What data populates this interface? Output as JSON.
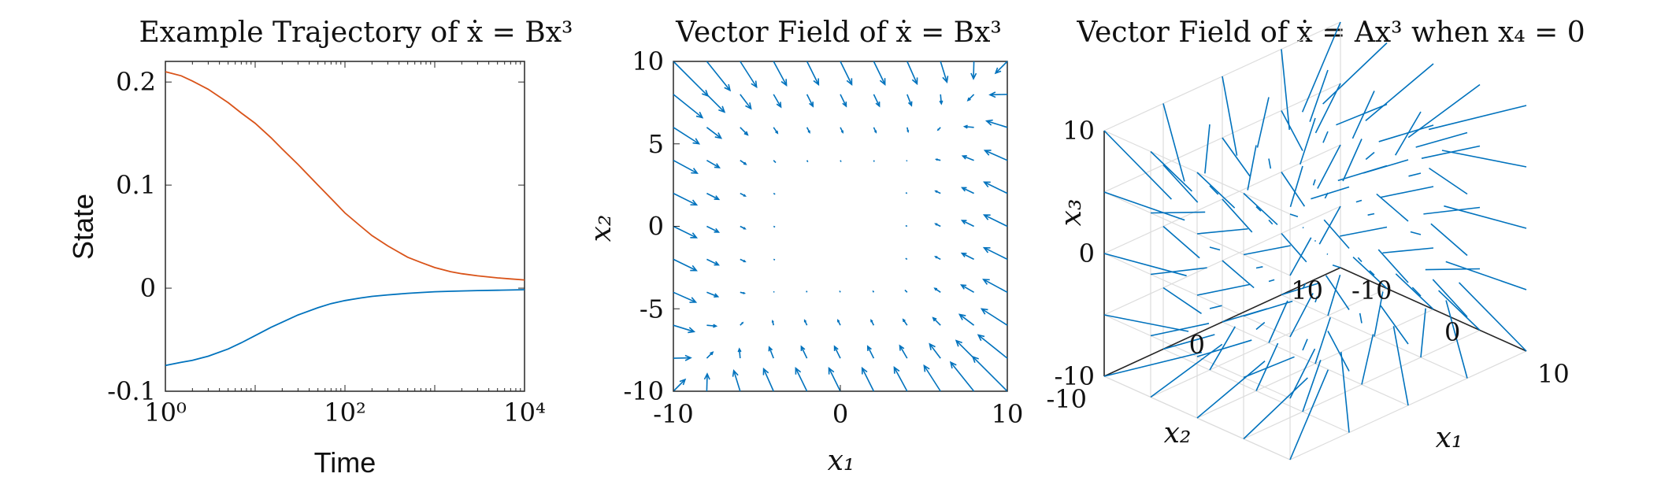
{
  "chart_data": [
    {
      "type": "line",
      "title": "Example Trajectory of ẋ = Bx³",
      "xlabel": "Time",
      "ylabel": "State",
      "x_scale": "log",
      "xlim": [
        1,
        10000
      ],
      "ylim": [
        -0.1,
        0.22
      ],
      "x_ticks": [
        1,
        100,
        10000
      ],
      "x_tick_labels": [
        "10⁰",
        "10²",
        "10⁴"
      ],
      "y_ticks": [
        -0.1,
        0,
        0.1,
        0.2
      ],
      "y_tick_labels": [
        "-0.1",
        "0",
        "0.1",
        "0.2"
      ],
      "series": [
        {
          "color": "#d95319",
          "x": [
            1,
            1.5,
            2,
            3,
            5,
            7,
            10,
            15,
            20,
            30,
            50,
            70,
            100,
            150,
            200,
            300,
            500,
            700,
            1000,
            1500,
            2000,
            3000,
            5000,
            7000,
            10000
          ],
          "values": [
            0.21,
            0.206,
            0.201,
            0.193,
            0.18,
            0.17,
            0.16,
            0.146,
            0.135,
            0.12,
            0.1,
            0.087,
            0.073,
            0.06,
            0.051,
            0.041,
            0.03,
            0.025,
            0.02,
            0.016,
            0.014,
            0.012,
            0.01,
            0.009,
            0.008
          ]
        },
        {
          "color": "#0072bd",
          "x": [
            1,
            1.5,
            2,
            3,
            5,
            7,
            10,
            15,
            20,
            30,
            50,
            70,
            100,
            150,
            200,
            300,
            500,
            700,
            1000,
            1500,
            2000,
            3000,
            5000,
            7000,
            10000
          ],
          "values": [
            -0.075,
            -0.072,
            -0.07,
            -0.066,
            -0.059,
            -0.053,
            -0.046,
            -0.038,
            -0.033,
            -0.026,
            -0.019,
            -0.015,
            -0.012,
            -0.0095,
            -0.008,
            -0.0065,
            -0.005,
            -0.0042,
            -0.0035,
            -0.003,
            -0.0027,
            -0.0023,
            -0.002,
            -0.0018,
            -0.0015
          ]
        }
      ]
    },
    {
      "type": "quiver",
      "title": "Vector Field of ẋ = Bx³",
      "xlabel": "x₁",
      "ylabel": "x₂",
      "xlim": [
        -10,
        10
      ],
      "ylim": [
        -10,
        10
      ],
      "x_ticks": [
        -10,
        0,
        10
      ],
      "x_tick_labels": [
        "-10",
        "0",
        "10"
      ],
      "y_ticks": [
        -10,
        -5,
        0,
        5,
        10
      ],
      "y_tick_labels": [
        "-10",
        "-5",
        "0",
        "5",
        "10"
      ],
      "grid_step": 2,
      "field": {
        "a": 0.67,
        "b": 0.33,
        "c": 0.67,
        "d": 0.33
      },
      "color": "#0072bd"
    },
    {
      "type": "quiver3d",
      "title": "Vector Field of ẋ = Ax³ when x₄ = 0",
      "xlabel": "x₁",
      "ylabel": "x₂",
      "zlabel": "x₃",
      "xlim": [
        -10,
        10
      ],
      "ylim": [
        -10,
        10
      ],
      "zlim": [
        -10,
        10
      ],
      "x_tick_labels": [
        "-10",
        "0",
        "10"
      ],
      "y_tick_labels": [
        "-10",
        "0",
        "10"
      ],
      "z_tick_labels": [
        "-10",
        "0",
        "10"
      ],
      "grid_levels": [
        -10,
        -5,
        0,
        5,
        10
      ],
      "color": "#0072bd"
    }
  ]
}
